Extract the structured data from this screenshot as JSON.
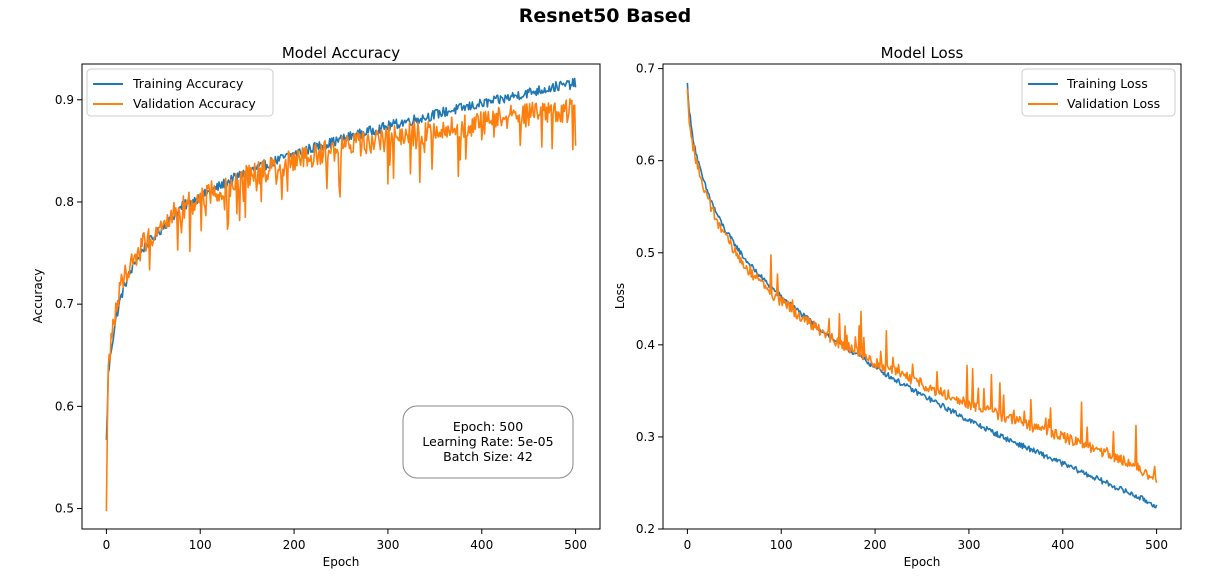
{
  "figure": {
    "suptitle": "Resnet50 Based"
  },
  "colors": {
    "training": "#1f77b4",
    "validation": "#ff7f0e"
  },
  "chart_data": [
    {
      "type": "line",
      "title": "Model Accuracy",
      "xlabel": "Epoch",
      "ylabel": "Accuracy",
      "xlim": [
        -26,
        526
      ],
      "ylim": [
        0.48,
        0.935
      ],
      "xticks": [
        0,
        100,
        200,
        300,
        400,
        500
      ],
      "yticks": [
        0.5,
        0.6,
        0.7,
        0.8,
        0.9
      ],
      "ytick_labels": [
        "0.5",
        "0.6",
        "0.7",
        "0.8",
        "0.9"
      ],
      "legend_position": "upper-left",
      "grid": false,
      "series": [
        {
          "name": "Training Accuracy",
          "color": "#1f77b4",
          "x": [
            0,
            2,
            5,
            10,
            15,
            20,
            30,
            40,
            50,
            60,
            70,
            80,
            90,
            100,
            120,
            140,
            160,
            180,
            200,
            220,
            240,
            260,
            280,
            300,
            320,
            340,
            360,
            380,
            400,
            420,
            440,
            460,
            480,
            500
          ],
          "y": [
            0.565,
            0.63,
            0.655,
            0.685,
            0.705,
            0.72,
            0.74,
            0.755,
            0.765,
            0.775,
            0.785,
            0.795,
            0.8,
            0.805,
            0.815,
            0.825,
            0.833,
            0.84,
            0.847,
            0.853,
            0.858,
            0.864,
            0.869,
            0.874,
            0.879,
            0.883,
            0.888,
            0.892,
            0.896,
            0.9,
            0.905,
            0.909,
            0.913,
            0.916
          ],
          "noise": 0.005
        },
        {
          "name": "Validation Accuracy",
          "color": "#ff7f0e",
          "x": [
            0,
            2,
            5,
            10,
            15,
            20,
            30,
            40,
            50,
            60,
            70,
            80,
            90,
            100,
            120,
            140,
            160,
            180,
            200,
            220,
            240,
            260,
            280,
            300,
            320,
            340,
            360,
            380,
            400,
            420,
            440,
            460,
            480,
            500
          ],
          "y": [
            0.492,
            0.64,
            0.665,
            0.695,
            0.715,
            0.73,
            0.745,
            0.76,
            0.77,
            0.778,
            0.786,
            0.793,
            0.8,
            0.805,
            0.813,
            0.82,
            0.828,
            0.834,
            0.84,
            0.845,
            0.85,
            0.855,
            0.858,
            0.862,
            0.866,
            0.869,
            0.872,
            0.875,
            0.878,
            0.881,
            0.884,
            0.886,
            0.888,
            0.89
          ],
          "noise": 0.012
        }
      ],
      "annotation": {
        "lines": [
          "Epoch: 500",
          "Learning Rate: 5e-05",
          "Batch Size: 42"
        ],
        "position": "lower-right"
      }
    },
    {
      "type": "line",
      "title": "Model Loss",
      "xlabel": "Epoch",
      "ylabel": "Loss",
      "xlim": [
        -26,
        526
      ],
      "ylim": [
        0.2,
        0.705
      ],
      "xticks": [
        0,
        100,
        200,
        300,
        400,
        500
      ],
      "yticks": [
        0.2,
        0.3,
        0.4,
        0.5,
        0.6,
        0.7
      ],
      "ytick_labels": [
        "0.2",
        "0.3",
        "0.4",
        "0.5",
        "0.6",
        "0.7"
      ],
      "legend_position": "upper-right",
      "grid": false,
      "series": [
        {
          "name": "Training Loss",
          "color": "#1f77b4",
          "x": [
            0,
            2,
            5,
            10,
            15,
            20,
            30,
            40,
            50,
            60,
            70,
            80,
            90,
            100,
            120,
            140,
            160,
            180,
            200,
            220,
            240,
            260,
            280,
            300,
            320,
            340,
            360,
            380,
            400,
            420,
            440,
            460,
            480,
            500
          ],
          "y": [
            0.683,
            0.655,
            0.63,
            0.605,
            0.585,
            0.57,
            0.545,
            0.525,
            0.51,
            0.495,
            0.483,
            0.472,
            0.462,
            0.452,
            0.435,
            0.418,
            0.403,
            0.39,
            0.376,
            0.363,
            0.351,
            0.34,
            0.329,
            0.318,
            0.308,
            0.298,
            0.289,
            0.28,
            0.271,
            0.262,
            0.253,
            0.244,
            0.235,
            0.225
          ],
          "noise": 0.003
        },
        {
          "name": "Validation Loss",
          "color": "#ff7f0e",
          "x": [
            0,
            2,
            5,
            10,
            15,
            20,
            30,
            40,
            50,
            60,
            70,
            80,
            90,
            100,
            120,
            140,
            160,
            180,
            200,
            220,
            240,
            260,
            280,
            300,
            320,
            340,
            360,
            380,
            400,
            420,
            440,
            460,
            480,
            500
          ],
          "y": [
            0.675,
            0.645,
            0.62,
            0.598,
            0.578,
            0.562,
            0.538,
            0.518,
            0.502,
            0.488,
            0.476,
            0.466,
            0.456,
            0.447,
            0.431,
            0.416,
            0.403,
            0.392,
            0.381,
            0.371,
            0.362,
            0.353,
            0.344,
            0.336,
            0.329,
            0.321,
            0.314,
            0.307,
            0.3,
            0.293,
            0.285,
            0.276,
            0.266,
            0.255
          ],
          "noise": 0.006
        }
      ]
    }
  ]
}
